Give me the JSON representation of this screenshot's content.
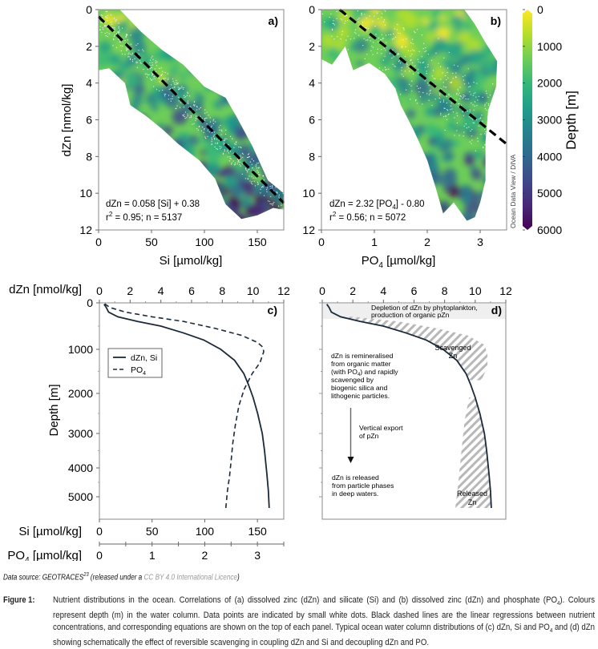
{
  "figure": {
    "source_prefix": "Data source: GEOTRACES",
    "source_ref": "23",
    "source_mid": " (released under a ",
    "source_license": "CC BY 4.0 International Licence",
    "source_suffix": ")",
    "caption_label": "Figure 1:",
    "caption_parts": [
      "Nutrient distributions in the ocean. Correlations of (a) dissolved zinc (dZn) and silicate (Si) and (b) dissolved zinc (dZn) and phosphate (PO",
      "4",
      "). Colours represent depth (m) in the water column. Data points are indicated by small white dots. Black dashed lines are the linear regressions between nutrient concentrations, and corresponding equations are shown on the top of each panel. Typical ocean water column distributions of (c) dZn, Si and PO",
      "4",
      " and (d) dZn showing schematically the effect of reversible scavenging in coupling dZn and Si and decoupling dZn and PO."
    ]
  },
  "colors": {
    "curve": "#1a2a3a",
    "hatch": "#b8b8b8",
    "band": "#efefef",
    "viridis": [
      "#fde725",
      "#b5de2b",
      "#6ece58",
      "#35b779",
      "#1f9e89",
      "#26828e",
      "#31688e",
      "#3e4989",
      "#482878",
      "#440154"
    ]
  },
  "chart_data": [
    {
      "panel": "a",
      "type": "scatter",
      "panel_label": "a)",
      "xlabel": "Si [µmol/kg]",
      "ylabel": "dZn [nmol/kg]",
      "xlim": [
        0,
        175
      ],
      "ylim": [
        12,
        0
      ],
      "xticks": [
        0,
        50,
        100,
        150
      ],
      "yticks": [
        0,
        2,
        4,
        6,
        8,
        10,
        12
      ],
      "regression": {
        "slope": 0.058,
        "intercept": 0.38,
        "style": "dashed"
      },
      "equation": "dZn = 0.058 [Si] + 0.38",
      "stats_r": "r",
      "stats_sup": "2",
      "stats_rest": " = 0.95; n = 5137",
      "color_variable": "Depth [m]",
      "envelope_upper": [
        [
          0,
          0
        ],
        [
          20,
          0
        ],
        [
          40,
          1.2
        ],
        [
          60,
          2.2
        ],
        [
          80,
          3.0
        ],
        [
          100,
          4.2
        ],
        [
          120,
          4.8
        ],
        [
          130,
          5.8
        ],
        [
          145,
          7.4
        ],
        [
          160,
          9.3
        ],
        [
          175,
          10.0
        ],
        [
          175,
          10.9
        ]
      ],
      "envelope_lower": [
        [
          0,
          3.3
        ],
        [
          10,
          3.2
        ],
        [
          25,
          4.0
        ],
        [
          30,
          5.2
        ],
        [
          45,
          5.8
        ],
        [
          60,
          6.5
        ],
        [
          75,
          7.3
        ],
        [
          95,
          8.2
        ],
        [
          110,
          9.2
        ],
        [
          120,
          10.6
        ],
        [
          135,
          11.4
        ],
        [
          150,
          11.2
        ],
        [
          165,
          10.8
        ],
        [
          175,
          10.9
        ]
      ]
    },
    {
      "panel": "b",
      "type": "scatter",
      "panel_label": "b)",
      "xlabel": "PO4 [µmol/kg]",
      "xlabel_main": "PO",
      "xlabel_sub": "4",
      "xlabel_rest": " [µmol/kg]",
      "ylabel": "dZn [nmol/kg]",
      "xlim": [
        0,
        3.5
      ],
      "ylim": [
        12,
        0
      ],
      "xticks": [
        0,
        1,
        2,
        3
      ],
      "yticks": [
        0,
        2,
        4,
        6,
        8,
        10,
        12
      ],
      "regression": {
        "slope": 2.32,
        "intercept": -0.8,
        "style": "dashed"
      },
      "equation_main": "dZn = 2.32 [PO",
      "equation_sub": "4",
      "equation_rest": "] - 0.80",
      "stats_r": "r",
      "stats_sup": "2",
      "stats_rest": " = 0.56; n = 5072",
      "envelope_upper": [
        [
          0,
          0
        ],
        [
          2.7,
          0
        ],
        [
          2.9,
          0.8
        ],
        [
          3.1,
          1.8
        ],
        [
          3.32,
          2.8
        ],
        [
          3.3,
          4.2
        ],
        [
          3.15,
          5.5
        ],
        [
          3.1,
          7.2
        ],
        [
          3.1,
          9.3
        ],
        [
          3.0,
          10.5
        ],
        [
          2.9,
          11.3
        ]
      ],
      "envelope_lower": [
        [
          0,
          2.7
        ],
        [
          0.2,
          3.0
        ],
        [
          0.45,
          2.0
        ],
        [
          0.6,
          3.3
        ],
        [
          0.9,
          2.9
        ],
        [
          1.2,
          3.5
        ],
        [
          1.4,
          4.3
        ],
        [
          1.5,
          5.2
        ],
        [
          1.75,
          6.6
        ],
        [
          2.0,
          8.2
        ],
        [
          2.15,
          9.6
        ],
        [
          2.3,
          11.1
        ],
        [
          2.5,
          10.5
        ],
        [
          2.75,
          11.5
        ],
        [
          2.9,
          11.3
        ]
      ]
    },
    {
      "panel": "colorbar",
      "type": "heatmap",
      "label": "Depth [m]",
      "ticks": [
        0,
        1000,
        2000,
        3000,
        4000,
        5000,
        6000
      ],
      "range": [
        0,
        6000
      ],
      "watermark": "Ocean Data View / DIVA"
    },
    {
      "panel": "c",
      "type": "line",
      "panel_label": "c)",
      "ylabel": "Depth [m]",
      "ylim": [
        0,
        5500
      ],
      "yticks": [
        0,
        1000,
        2000,
        3000,
        4000,
        5000
      ],
      "axes": [
        {
          "label": "dZn [nmol/kg]",
          "range": [
            0,
            12
          ],
          "ticks": [
            0,
            2,
            4,
            6,
            8,
            10,
            12
          ],
          "position": "top"
        },
        {
          "label": "Si [µmol/kg]",
          "range": [
            0,
            175
          ],
          "ticks": [
            0,
            50,
            100,
            150
          ],
          "position": "bottom"
        },
        {
          "label": "PO4 [µmol/kg]",
          "label_main": "PO",
          "label_sub": "4",
          "label_rest": " [µmol/kg]",
          "range": [
            0,
            3.5
          ],
          "ticks": [
            0,
            1,
            2,
            3
          ],
          "position": "bottom-2"
        }
      ],
      "legend": [
        {
          "name": "dZn, Si",
          "style": "solid"
        },
        {
          "name_main": "PO",
          "name_sub": "4",
          "style": "dashed"
        }
      ],
      "series": [
        {
          "name": "dZn, Si",
          "axis_range": [
            0,
            12
          ],
          "points": [
            [
              0.3,
              30
            ],
            [
              0.45,
              100
            ],
            [
              0.6,
              200
            ],
            [
              1.2,
              300
            ],
            [
              2.5,
              400
            ],
            [
              4.0,
              500
            ],
            [
              5.5,
              650
            ],
            [
              6.8,
              800
            ],
            [
              7.9,
              1000
            ],
            [
              8.8,
              1250
            ],
            [
              9.4,
              1550
            ],
            [
              9.7,
              1800
            ],
            [
              10.0,
              2100
            ],
            [
              10.3,
              2500
            ],
            [
              10.6,
              3000
            ],
            [
              10.75,
              3500
            ],
            [
              10.9,
              4200
            ],
            [
              11.0,
              4800
            ],
            [
              11.05,
              5250
            ]
          ]
        },
        {
          "name": "PO4",
          "axis_range": [
            0,
            3.5
          ],
          "points": [
            [
              0.1,
              20
            ],
            [
              0.2,
              100
            ],
            [
              0.5,
              200
            ],
            [
              1.0,
              300
            ],
            [
              1.6,
              400
            ],
            [
              2.2,
              550
            ],
            [
              2.7,
              700
            ],
            [
              3.0,
              850
            ],
            [
              3.1,
              950
            ],
            [
              3.12,
              1050
            ],
            [
              3.05,
              1300
            ],
            [
              2.9,
              1550
            ],
            [
              2.75,
              1900
            ],
            [
              2.65,
              2300
            ],
            [
              2.58,
              2800
            ],
            [
              2.53,
              3300
            ],
            [
              2.5,
              3800
            ],
            [
              2.47,
              4300
            ],
            [
              2.43,
              4800
            ],
            [
              2.4,
              5250
            ]
          ]
        }
      ]
    },
    {
      "panel": "d",
      "type": "line",
      "panel_label": "d)",
      "axis_label": "dZn [nmol/kg]",
      "xlim": [
        0,
        12
      ],
      "xticks": [
        0,
        2,
        4,
        6,
        8,
        10,
        12
      ],
      "band_text": [
        "Depletion of dZn by phytoplankton,",
        "production of organic pZn"
      ],
      "notes": {
        "remineralised_lines": [
          "dZn is remineralised",
          "from organic matter",
          "(with PO",
          "4",
          ") and rapidly",
          "scavenged by",
          "biogenic silica and",
          "lithogenic particles."
        ],
        "export": [
          "Vertical export",
          "of pZn"
        ],
        "released_lines": [
          "dZn is released",
          "from particle phases",
          "in deep waters."
        ],
        "scavenged_label": [
          "Scavenged",
          "Zn"
        ],
        "released_label": [
          "Released",
          "Zn"
        ]
      }
    }
  ]
}
